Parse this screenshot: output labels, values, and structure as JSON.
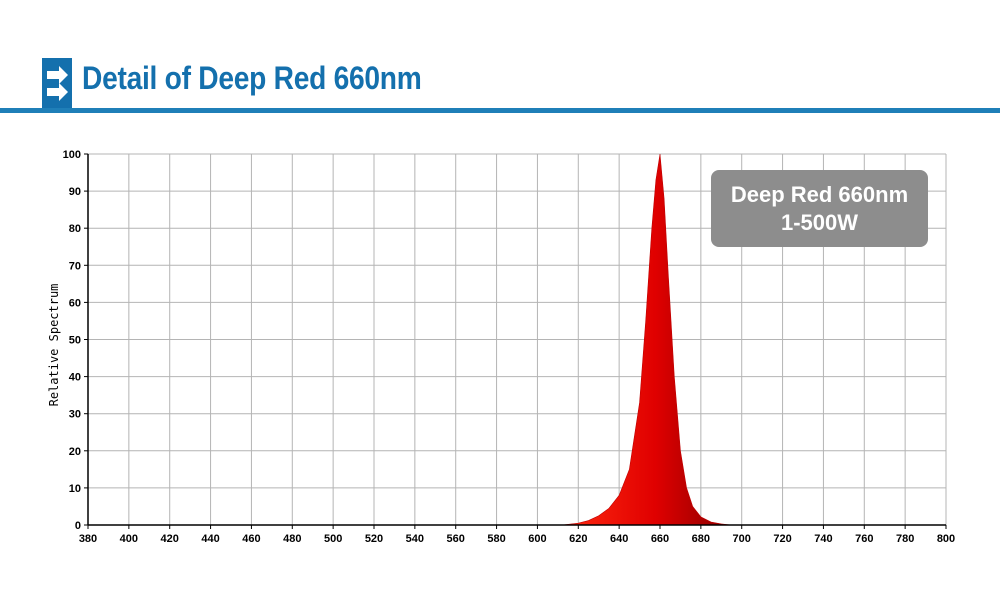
{
  "header": {
    "title": "Detail of Deep Red 660nm",
    "accent_color": "#1470ad",
    "icon": "double-arrow-right-icon"
  },
  "legend": {
    "line1": "Deep Red 660nm",
    "line2": "1-500W",
    "background": "#8d8d8d"
  },
  "chart_data": {
    "type": "area",
    "title": "",
    "xlabel": "",
    "ylabel": "Relative Spectrum",
    "xlim": [
      380,
      800
    ],
    "ylim": [
      0,
      100
    ],
    "xticks": [
      380,
      400,
      420,
      440,
      460,
      480,
      500,
      520,
      540,
      560,
      580,
      600,
      620,
      640,
      660,
      680,
      700,
      720,
      740,
      760,
      780,
      800
    ],
    "yticks": [
      0,
      10,
      20,
      30,
      40,
      50,
      60,
      70,
      80,
      90,
      100
    ],
    "grid": true,
    "series": [
      {
        "color": "#e00000",
        "x": [
          612,
          620,
          625,
          630,
          635,
          640,
          645,
          650,
          653,
          656,
          658,
          660,
          662,
          664,
          667,
          670,
          673,
          676,
          680,
          685,
          690,
          695
        ],
        "y": [
          0,
          0.5,
          1.2,
          2.5,
          4.5,
          8,
          15,
          33,
          55,
          80,
          93,
          100,
          88,
          68,
          40,
          20,
          10,
          5,
          2.2,
          0.8,
          0.3,
          0
        ]
      }
    ]
  }
}
